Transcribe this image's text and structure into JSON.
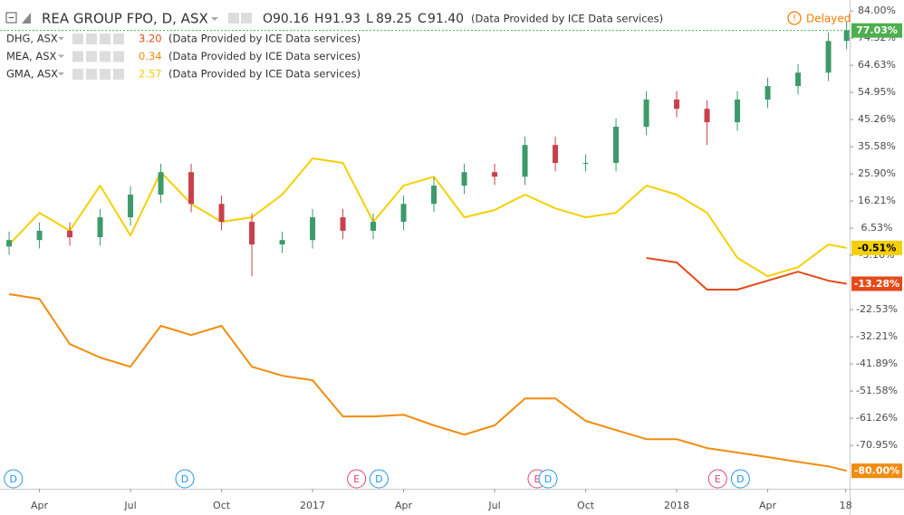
{
  "chart_data": {
    "type": "candlestick",
    "title": "REA GROUP FPO, D, ASX",
    "ohlc_legend": [
      {
        "label": "O",
        "value": "90.16"
      },
      {
        "label": "H",
        "value": "91.93"
      },
      {
        "label": "L",
        "value": "89.25"
      },
      {
        "label": "C",
        "value": "91.40"
      }
    ],
    "source": "(Data Provided by ICE Data services)",
    "status": "Delayed",
    "grid": false,
    "x": [
      2,
      3,
      4,
      5,
      6,
      7,
      8,
      9,
      10,
      11,
      12,
      13,
      14,
      15,
      16,
      17,
      18,
      19,
      20,
      21,
      22,
      23,
      24,
      25,
      26,
      27,
      28,
      29,
      29.6
    ],
    "xlim": [
      1.7,
      29.7
    ],
    "xticks": [
      {
        "value": 3,
        "label": "Apr"
      },
      {
        "value": 6,
        "label": "Jul"
      },
      {
        "value": 9,
        "label": "Oct"
      },
      {
        "value": 12,
        "label": "2017"
      },
      {
        "value": 15,
        "label": "Apr"
      },
      {
        "value": 18,
        "label": "Jul"
      },
      {
        "value": 21,
        "label": "Oct"
      },
      {
        "value": 24,
        "label": "2018"
      },
      {
        "value": 27,
        "label": "Apr"
      },
      {
        "value": 29.57,
        "label": "18"
      }
    ],
    "ylim": [
      -86.4,
      87.9
    ],
    "yticks": [
      {
        "value": 84,
        "label": "84.00%"
      },
      {
        "value": 74.32,
        "label": "74.32%"
      },
      {
        "value": 64.63,
        "label": "64.63%"
      },
      {
        "value": 54.95,
        "label": "54.95%"
      },
      {
        "value": 45.26,
        "label": "45.26%"
      },
      {
        "value": 35.58,
        "label": "35.58%"
      },
      {
        "value": 25.9,
        "label": "25.90%"
      },
      {
        "value": 16.21,
        "label": "16.21%"
      },
      {
        "value": 6.53,
        "label": "6.53%"
      },
      {
        "value": -3.16,
        "label": "-3.16%"
      },
      {
        "value": -22.53,
        "label": "-22.53%"
      },
      {
        "value": -32.21,
        "label": "-32.21%"
      },
      {
        "value": -41.89,
        "label": "-41.89%"
      },
      {
        "value": -51.58,
        "label": "-51.58%"
      },
      {
        "value": -61.26,
        "label": "-61.26%"
      },
      {
        "value": -70.95,
        "label": "-70.95%"
      }
    ],
    "candles": {
      "color_up": "#3d9a6b",
      "color_down": "#c9404c",
      "badge_color": "#4caf50",
      "open": [
        0,
        2.3,
        5.6,
        3.3,
        10.4,
        18.5,
        26.5,
        15.2,
        8.8,
        0.7,
        2.3,
        10.4,
        5.6,
        8.8,
        15.2,
        21.7,
        26.5,
        24.9,
        36.2,
        29.8,
        29.8,
        42.7,
        52.4,
        49.1,
        44.3,
        52.4,
        57.2,
        62.0,
        73.3
      ],
      "high": [
        5.3,
        8.6,
        8.6,
        13.4,
        21.5,
        29.5,
        29.5,
        18.2,
        11.8,
        5.3,
        13.4,
        13.4,
        11.8,
        18.2,
        24.7,
        29.5,
        29.5,
        39.2,
        39.2,
        32.8,
        45.7,
        55.4,
        55.4,
        52.1,
        55.4,
        60.2,
        65.0,
        76.3,
        80.0
      ],
      "low": [
        -3,
        -0.7,
        0.3,
        0.3,
        7.4,
        15.5,
        12.2,
        5.8,
        -10.6,
        -2.3,
        -0.7,
        2.6,
        2.6,
        5.8,
        12.2,
        18.7,
        21.9,
        21.9,
        26.8,
        26.8,
        26.8,
        39.7,
        46.1,
        36.2,
        41.3,
        49.4,
        54.2,
        59.0,
        70.3
      ],
      "close": [
        2.3,
        5.6,
        3.3,
        10.4,
        18.5,
        26.5,
        15.2,
        8.8,
        0.7,
        2.3,
        10.4,
        5.6,
        8.8,
        15.2,
        21.7,
        26.5,
        24.9,
        36.2,
        29.8,
        29.8,
        42.7,
        52.4,
        49.1,
        44.3,
        52.4,
        57.2,
        62.0,
        73.3,
        77.03
      ],
      "value_labels": [
        null,
        null,
        null,
        null,
        null,
        null,
        null,
        null,
        null,
        null,
        null,
        null,
        null,
        null,
        null,
        null,
        null,
        null,
        null,
        null,
        null,
        null,
        null,
        null,
        null,
        null,
        null,
        null,
        "77.03%"
      ]
    },
    "series": [
      {
        "name": "DHG, ASX",
        "price": "3.20",
        "color": "#e64a19",
        "text_color": "#ffffff",
        "values": [
          null,
          null,
          null,
          null,
          null,
          null,
          null,
          null,
          null,
          null,
          null,
          null,
          null,
          null,
          null,
          null,
          null,
          null,
          null,
          null,
          null,
          -4.1,
          -5.7,
          -15.4,
          -15.4,
          -12.2,
          -9.0,
          -12.2,
          -13.28
        ],
        "value_labels": [
          null,
          null,
          null,
          null,
          null,
          null,
          null,
          null,
          null,
          null,
          null,
          null,
          null,
          null,
          null,
          null,
          null,
          null,
          null,
          null,
          null,
          null,
          null,
          null,
          null,
          null,
          null,
          null,
          "-13.28%"
        ]
      },
      {
        "name": "MEA, ASX",
        "price": "0.34",
        "color": "#f28c0f",
        "text_color": "#ffffff",
        "values": [
          -17.0,
          -18.7,
          -34.8,
          -39.6,
          -42.9,
          -28.3,
          -31.6,
          -28.3,
          -42.9,
          -46.1,
          -47.7,
          -60.6,
          -60.6,
          -60.0,
          -63.8,
          -67.1,
          -63.8,
          -54.2,
          -54.2,
          -62.2,
          -65.5,
          -68.7,
          -68.7,
          -71.9,
          -73.5,
          -75.1,
          -76.8,
          -78.4,
          -80.0
        ],
        "value_labels": [
          null,
          null,
          null,
          null,
          null,
          null,
          null,
          null,
          null,
          null,
          null,
          null,
          null,
          null,
          null,
          null,
          null,
          null,
          null,
          null,
          null,
          null,
          null,
          null,
          null,
          null,
          null,
          null,
          "-80.00%"
        ]
      },
      {
        "name": "GMA, ASX",
        "price": "2.57",
        "color": "#f5d000",
        "text_color": "#000000",
        "values": [
          0.7,
          12.0,
          5.6,
          21.7,
          3.9,
          26.5,
          15.2,
          8.8,
          10.4,
          18.5,
          31.4,
          29.8,
          8.8,
          21.7,
          24.9,
          10.4,
          13.0,
          18.5,
          13.6,
          10.4,
          12.0,
          21.7,
          18.5,
          12.0,
          -4.1,
          -10.6,
          -7.4,
          0.7,
          -0.51
        ],
        "value_labels": [
          null,
          null,
          null,
          null,
          null,
          null,
          null,
          null,
          null,
          null,
          null,
          null,
          null,
          null,
          null,
          null,
          null,
          null,
          null,
          null,
          null,
          null,
          null,
          null,
          null,
          null,
          null,
          null,
          "-0.51%"
        ]
      }
    ],
    "events": [
      {
        "label": "D",
        "x": 2.14,
        "color": "#2196f3"
      },
      {
        "label": "D",
        "x": 7.79,
        "color": "#2196f3"
      },
      {
        "label": "E",
        "x": 13.45,
        "color": "#e0457b"
      },
      {
        "label": "D",
        "x": 14.19,
        "color": "#2196f3"
      },
      {
        "label": "E",
        "x": 19.4,
        "color": "#e0457b"
      },
      {
        "label": "D",
        "x": 19.76,
        "color": "#2196f3"
      },
      {
        "label": "E",
        "x": 25.35,
        "color": "#e0457b"
      },
      {
        "label": "D",
        "x": 26.1,
        "color": "#2196f3"
      }
    ]
  }
}
